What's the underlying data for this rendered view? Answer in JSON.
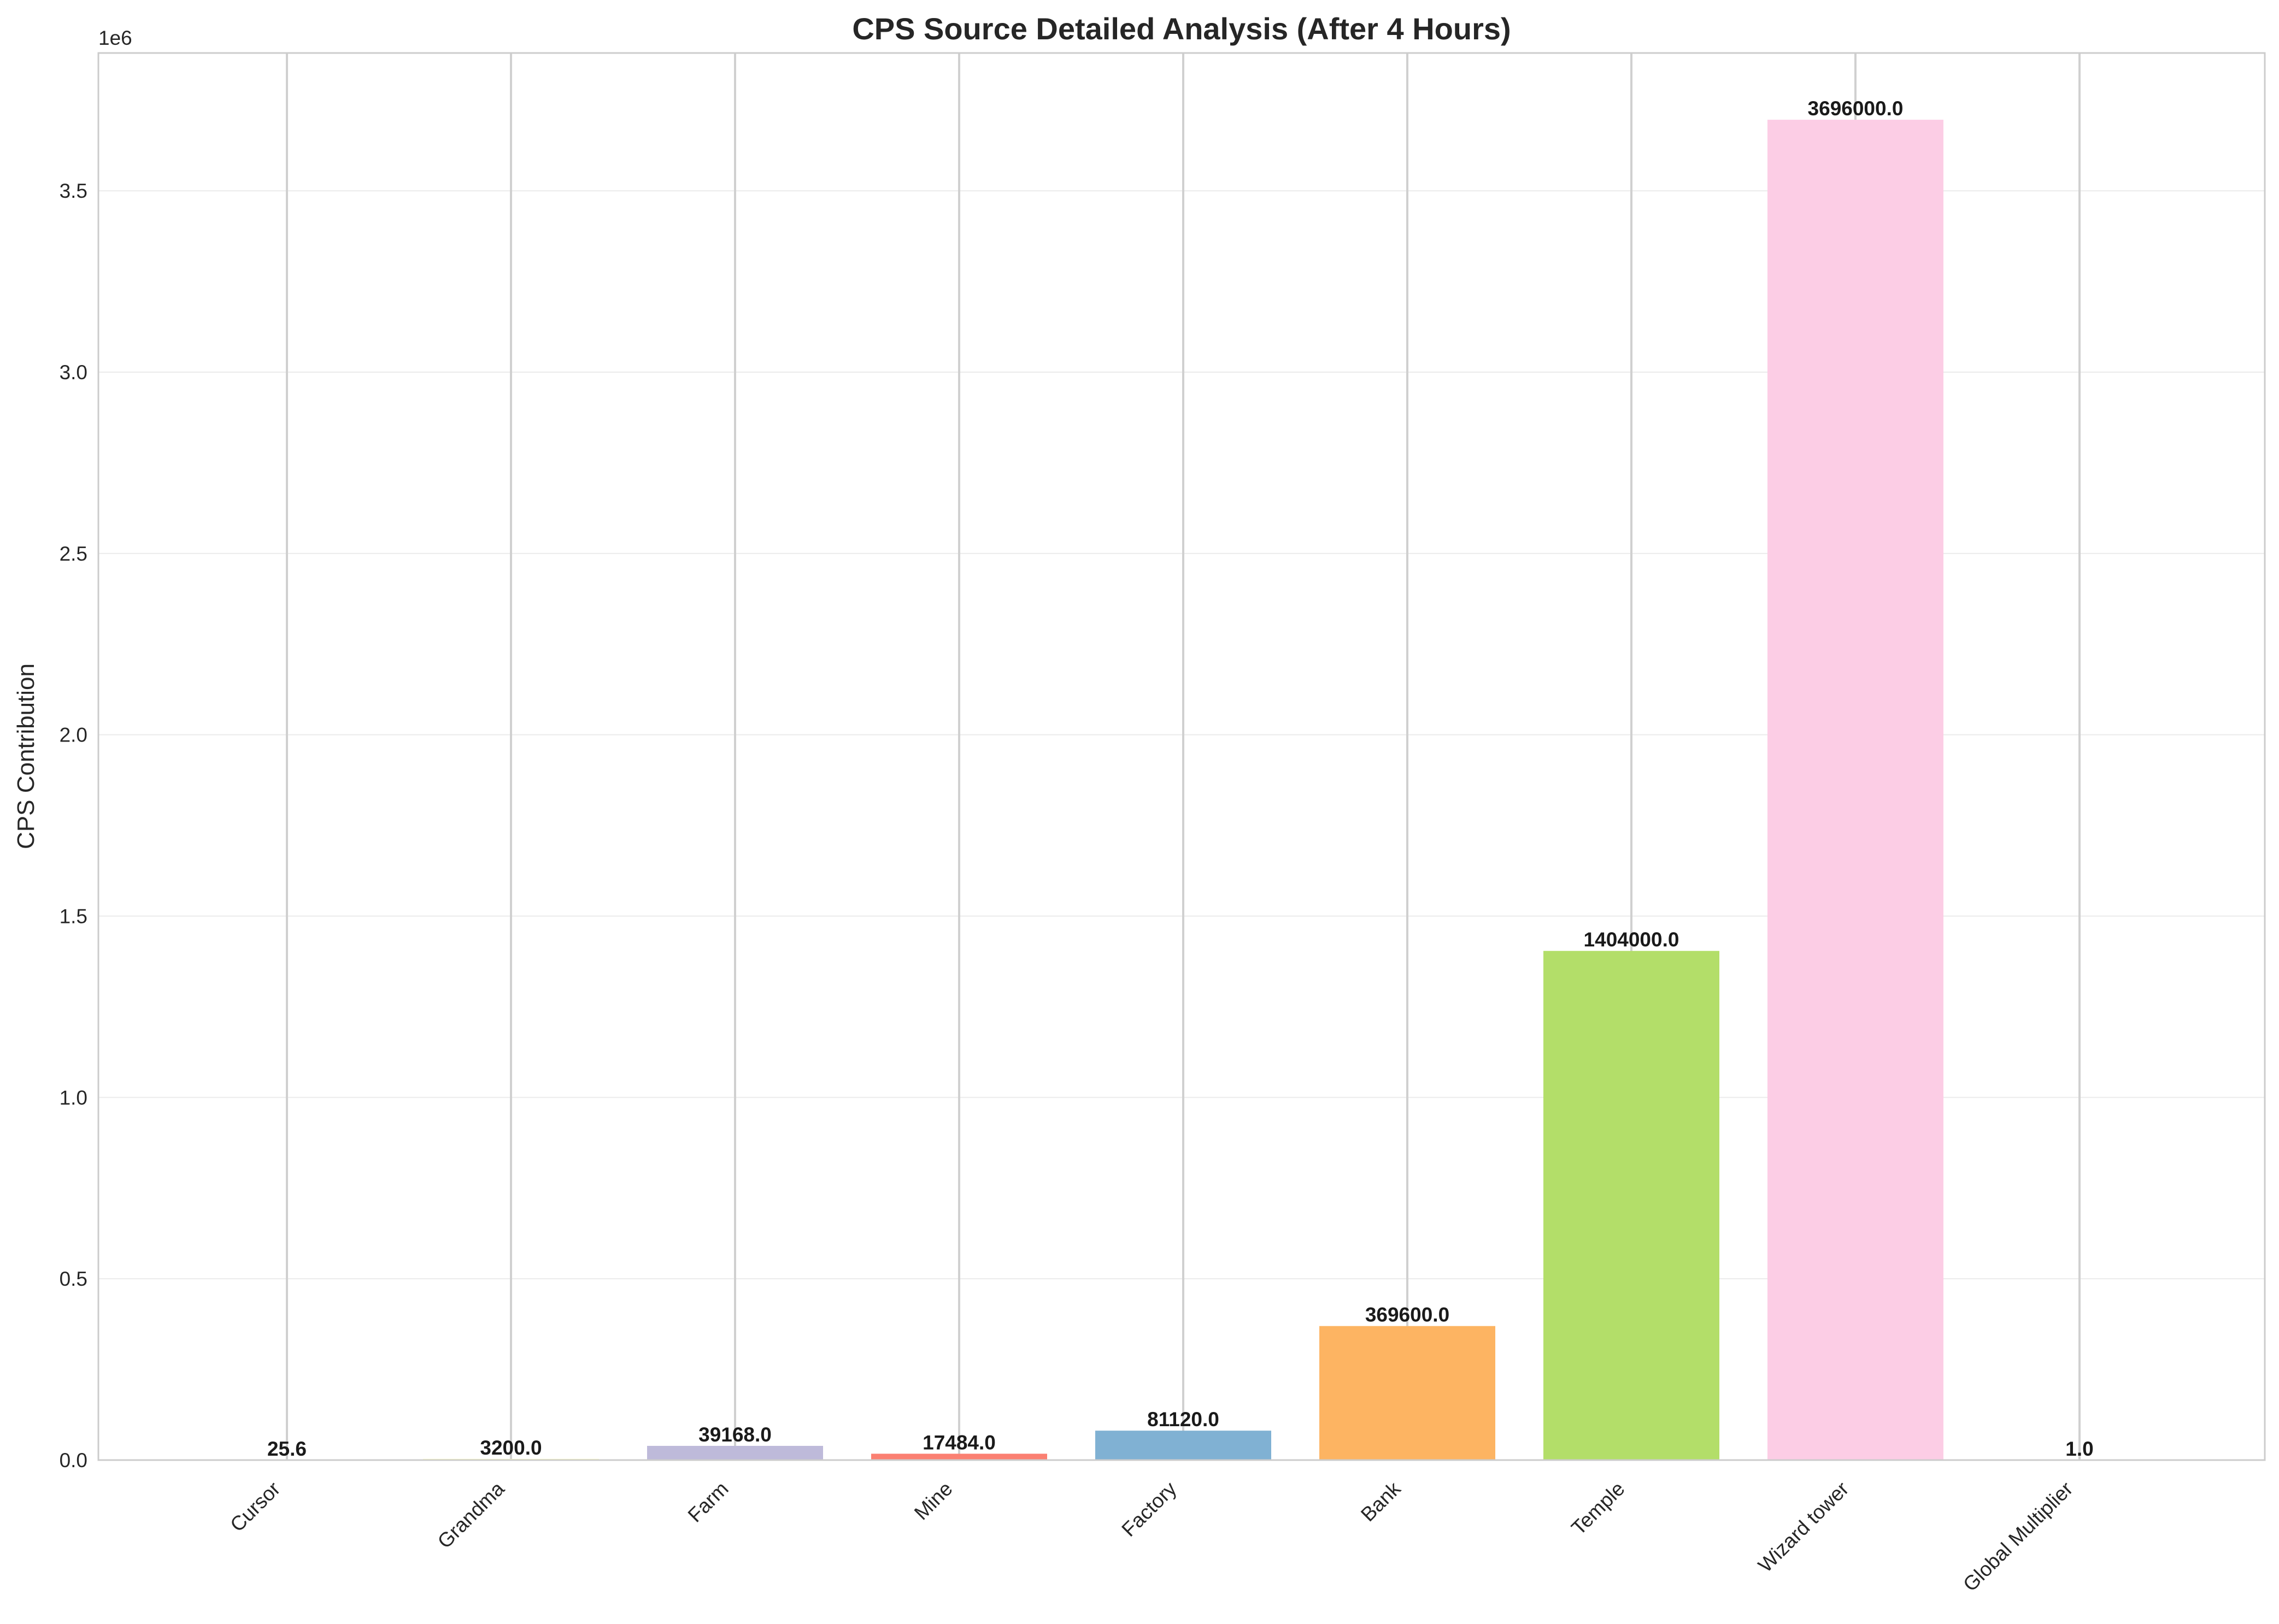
{
  "chart_data": {
    "type": "bar",
    "title": "CPS Source Detailed Analysis (After 4 Hours)",
    "xlabel": "",
    "ylabel": "CPS Contribution",
    "y_scale_label": "1e6",
    "ylim": [
      0,
      3880000
    ],
    "y_ticks": [
      0,
      500000,
      1000000,
      1500000,
      2000000,
      2500000,
      3000000,
      3500000
    ],
    "y_tick_labels": [
      "0.0",
      "0.5",
      "1.0",
      "1.5",
      "2.0",
      "2.5",
      "3.0",
      "3.5"
    ],
    "grid": true,
    "categories": [
      "Cursor",
      "Grandma",
      "Farm",
      "Mine",
      "Factory",
      "Bank",
      "Temple",
      "Wizard tower",
      "Global Multiplier"
    ],
    "values": [
      25.6,
      3200.0,
      39168.0,
      17484.0,
      81120.0,
      369600.0,
      1404000.0,
      3696000.0,
      1.0
    ],
    "value_labels": [
      "25.6",
      "3200.0",
      "39168.0",
      "17484.0",
      "81120.0",
      "369600.0",
      "1404000.0",
      "3696000.0",
      "1.0"
    ],
    "colors": [
      "#8dd3c7",
      "#ffffb3",
      "#bebada",
      "#fb8072",
      "#80b1d3",
      "#fdb462",
      "#b3de69",
      "#fccde5",
      "#d9d9d9"
    ]
  }
}
